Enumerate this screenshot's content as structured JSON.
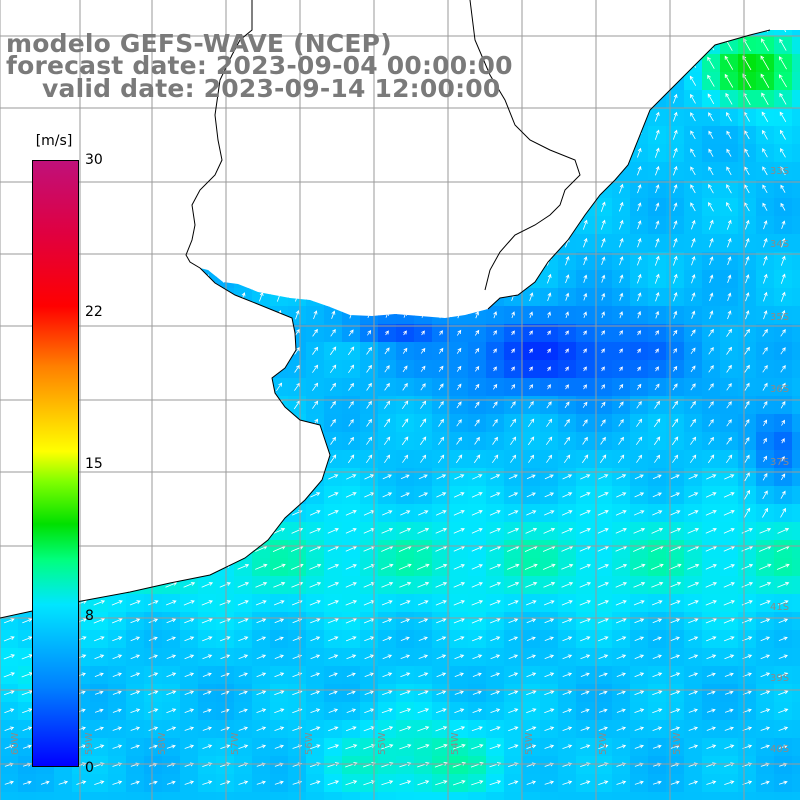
{
  "title": {
    "line1": "modelo GEFS-WAVE (NCEP)",
    "line2": "forecast date: 2023-09-04 00:00:00",
    "line3": "valid date: 2023-09-14 12:00:00"
  },
  "colorbar": {
    "unit": "[m/s]",
    "min": 0,
    "max": 30,
    "ticks": [
      "30",
      "22",
      "15",
      "8",
      "0"
    ],
    "tick_values": [
      30,
      22,
      15,
      8,
      0
    ]
  },
  "map": {
    "variable": "wind speed and direction",
    "land_color": "#ffffff",
    "grid_color": "#9a9a9a",
    "coast_color": "#000000",
    "arrow_color": "#ffffff",
    "lat_labels": [
      "33S",
      "34S",
      "35S",
      "36S",
      "37S",
      "39S",
      "40S",
      "41S"
    ],
    "lon_labels": [
      "60W",
      "59W",
      "58W",
      "57W",
      "56W",
      "55W",
      "54W",
      "53W",
      "52W",
      "51W"
    ]
  }
}
